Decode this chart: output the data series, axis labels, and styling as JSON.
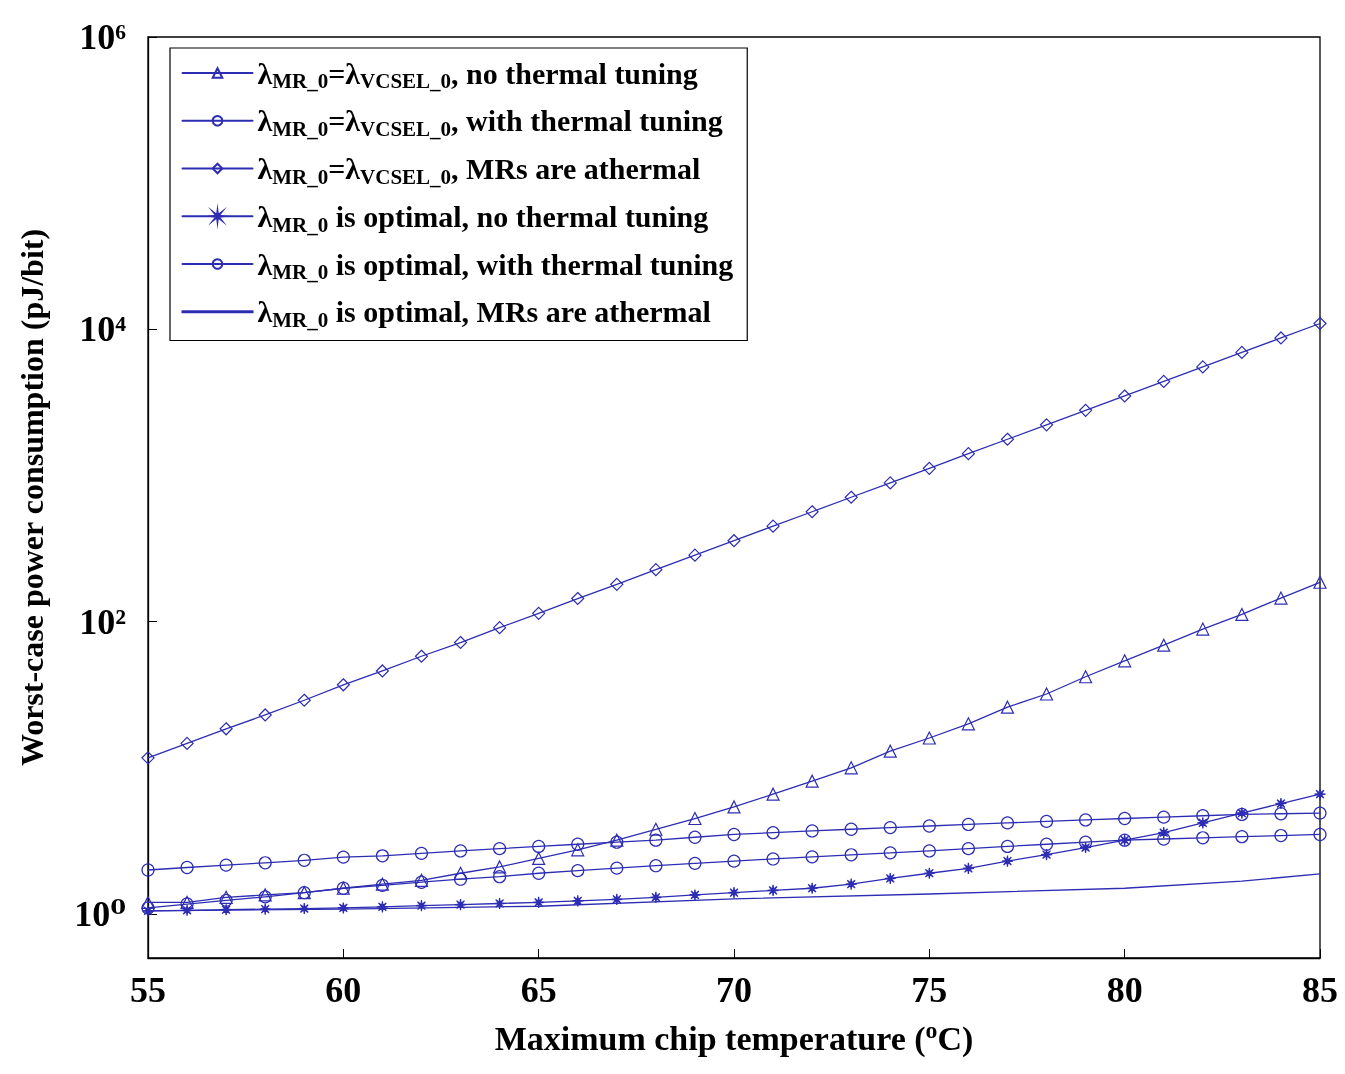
{
  "chart_data": {
    "type": "line",
    "xlabel": "Maximum chip temperature ($^{o}$C)",
    "ylabel": "Worst-case power consumption (pJ/bit)",
    "x": [
      55,
      56,
      57,
      58,
      59,
      60,
      61,
      62,
      63,
      64,
      65,
      66,
      67,
      68,
      69,
      70,
      71,
      72,
      73,
      74,
      75,
      76,
      77,
      78,
      79,
      80,
      81,
      82,
      83,
      84,
      85
    ],
    "xlim": [
      55,
      85
    ],
    "xticks": [
      55,
      60,
      65,
      70,
      75,
      80,
      85
    ],
    "ylim": [
      0.5,
      1000000
    ],
    "log": "y",
    "yticks": [
      {
        "value": 1,
        "label": "10⁰"
      },
      {
        "value": 100,
        "label": "10²"
      },
      {
        "value": 10000,
        "label": "10⁴"
      },
      {
        "value": 1000000,
        "label": "10⁶"
      }
    ],
    "grid": false,
    "legend": "top left",
    "line_style": "solid",
    "series": [
      {
        "name": "λ$_{MR_0}$=λ$_{VCSEL_0}$, no thermal tuning",
        "color": "#2d2db4",
        "marker": "triangle",
        "values": [
          1.2,
          1.2,
          1.3,
          1.35,
          1.4,
          1.5,
          1.6,
          1.7,
          1.9,
          2.1,
          2.4,
          2.75,
          3.2,
          3.8,
          4.5,
          5.4,
          6.6,
          8.1,
          10,
          13,
          16,
          20,
          26,
          32,
          42,
          54,
          69,
          89,
          112,
          145,
          186
        ]
      },
      {
        "name": "λ$_{MR_0}$=λ$_{VCSEL_0}$, with thermal tuning",
        "color": "#2d2db4",
        "marker": "circle",
        "values": [
          2.0,
          2.08,
          2.16,
          2.24,
          2.33,
          2.45,
          2.5,
          2.6,
          2.7,
          2.8,
          2.9,
          3.0,
          3.1,
          3.2,
          3.35,
          3.5,
          3.6,
          3.7,
          3.8,
          3.9,
          4.0,
          4.1,
          4.2,
          4.3,
          4.4,
          4.5,
          4.6,
          4.7,
          4.8,
          4.85,
          4.9
        ]
      },
      {
        "name": "λ$_{MR_0}$=λ$_{VCSEL_0}$, MRs are athermal",
        "color": "#2d2db4",
        "marker": "diamond",
        "values": [
          11.7,
          14.7,
          18.5,
          23,
          29,
          37,
          46,
          58,
          72,
          91,
          114,
          144,
          180,
          227,
          285,
          358,
          450,
          565,
          710,
          890,
          1120,
          1410,
          1770,
          2220,
          2790,
          3500,
          4400,
          5530,
          6950,
          8730,
          10960
        ]
      },
      {
        "name": "λ$_{MR_0}$ is optimal, no thermal tuning",
        "color": "#2d2db4",
        "marker": "star",
        "values": [
          1.05,
          1.06,
          1.07,
          1.08,
          1.09,
          1.1,
          1.12,
          1.14,
          1.16,
          1.18,
          1.2,
          1.23,
          1.26,
          1.3,
          1.35,
          1.4,
          1.45,
          1.5,
          1.6,
          1.75,
          1.9,
          2.05,
          2.3,
          2.55,
          2.85,
          3.2,
          3.6,
          4.2,
          4.9,
          5.7,
          6.6
        ]
      },
      {
        "name": "λ$_{MR_0}$ is optimal, with thermal tuning",
        "color": "#2d2db4",
        "marker": "circle",
        "values": [
          1.1,
          1.17,
          1.24,
          1.31,
          1.4,
          1.5,
          1.57,
          1.65,
          1.73,
          1.8,
          1.9,
          1.98,
          2.06,
          2.14,
          2.22,
          2.3,
          2.38,
          2.46,
          2.54,
          2.62,
          2.7,
          2.8,
          2.9,
          3.0,
          3.1,
          3.2,
          3.26,
          3.32,
          3.38,
          3.44,
          3.5
        ]
      },
      {
        "name": "λ$_{MR_0}$ is optimal, MRs are athermal",
        "color": "#2d2db4",
        "marker": "none",
        "x": [
          55,
          60,
          65,
          70,
          75,
          80,
          83,
          85
        ],
        "values": [
          1.05,
          1.08,
          1.13,
          1.27,
          1.37,
          1.5,
          1.68,
          1.88
        ]
      }
    ]
  }
}
